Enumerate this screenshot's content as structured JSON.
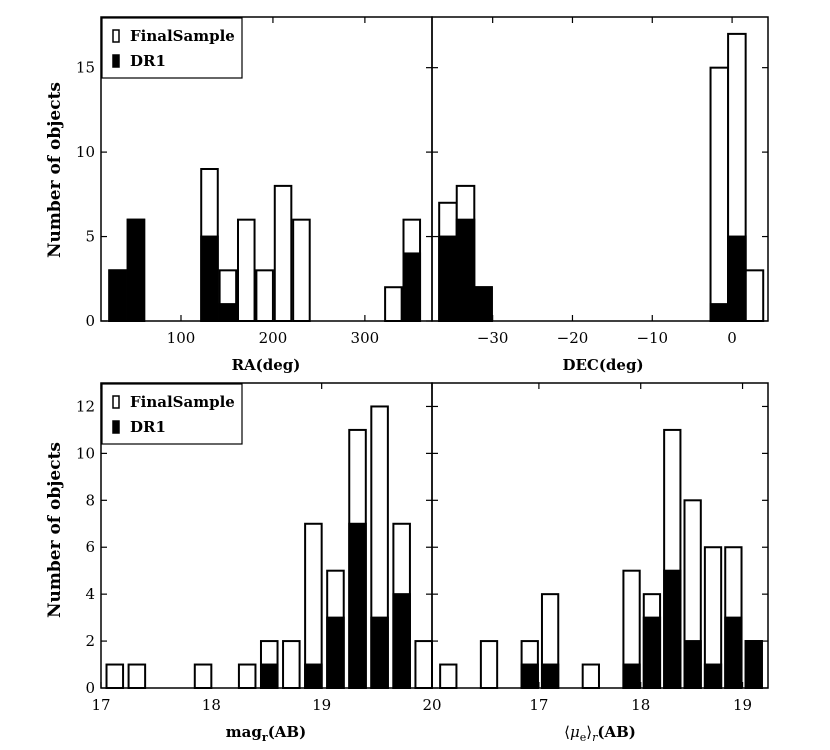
{
  "figure": {
    "ylabel_top": "Number of objects",
    "ylabel_bottom": "Number of objects"
  },
  "chart_data": [
    {
      "type": "bar",
      "panel": "top-left",
      "xlabel": "RA(deg)",
      "ylabel": "Number of objects",
      "xlim": [
        13,
        373
      ],
      "ylim": [
        0,
        18
      ],
      "xticks": [
        100,
        200,
        300
      ],
      "xtick_labels": [
        "100",
        "200",
        "300"
      ],
      "yticks": [
        0,
        5,
        10,
        15
      ],
      "ytick_labels": [
        "0",
        "5",
        "10",
        "15"
      ],
      "legend": {
        "position": "top-left",
        "entries": [
          "FinalSample",
          "DR1"
        ]
      },
      "series": [
        {
          "name": "FinalSample",
          "style": "open",
          "bins": [
            [
              22,
              40,
              3
            ],
            [
              42,
              60,
              6
            ],
            [
              122,
              140,
              9
            ],
            [
              142,
              160,
              3
            ],
            [
              162,
              180,
              6
            ],
            [
              182,
              200,
              3
            ],
            [
              202,
              220,
              8
            ],
            [
              222,
              240,
              6
            ],
            [
              322,
              340,
              2
            ],
            [
              342,
              360,
              6
            ]
          ]
        },
        {
          "name": "DR1",
          "style": "filled",
          "bins": [
            [
              22,
              40,
              3
            ],
            [
              42,
              60,
              6
            ],
            [
              122,
              140,
              5
            ],
            [
              142,
              160,
              1
            ],
            [
              342,
              360,
              4
            ]
          ]
        }
      ]
    },
    {
      "type": "bar",
      "panel": "top-right",
      "xlabel": "DEC(deg)",
      "ylabel": "",
      "xlim": [
        -37.6,
        4.5
      ],
      "ylim": [
        0,
        18
      ],
      "xticks": [
        -30,
        -20,
        -10,
        0
      ],
      "xtick_labels": [
        "−30",
        "−20",
        "−10",
        "0"
      ],
      "yticks": [
        0,
        5,
        10,
        15
      ],
      "ytick_labels": [],
      "series": [
        {
          "name": "FinalSample",
          "style": "open",
          "bins": [
            [
              -36.7,
              -34.5,
              7
            ],
            [
              -34.5,
              -32.3,
              8
            ],
            [
              -32.3,
              -30.1,
              2
            ],
            [
              -2.7,
              -0.5,
              15
            ],
            [
              -0.5,
              1.7,
              17
            ],
            [
              1.7,
              3.9,
              3
            ]
          ]
        },
        {
          "name": "DR1",
          "style": "filled",
          "bins": [
            [
              -36.7,
              -34.5,
              5
            ],
            [
              -34.5,
              -32.3,
              6
            ],
            [
              -32.3,
              -30.1,
              2
            ],
            [
              -2.7,
              -0.5,
              1
            ],
            [
              -0.5,
              1.7,
              5
            ]
          ]
        }
      ]
    },
    {
      "type": "bar",
      "panel": "bottom-left",
      "xlabel": "magr(AB)",
      "xlabel_main": "mag",
      "xlabel_sub": "r",
      "xlabel_tail": "(AB)",
      "ylabel": "Number of objects",
      "xlim": [
        17,
        20
      ],
      "ylim": [
        0,
        13
      ],
      "xticks": [
        17,
        18,
        19,
        20
      ],
      "xtick_labels": [
        "17",
        "18",
        "19",
        "20"
      ],
      "yticks": [
        0,
        2,
        4,
        6,
        8,
        10,
        12
      ],
      "ytick_labels": [
        "0",
        "2",
        "4",
        "6",
        "8",
        "10",
        "12"
      ],
      "legend": {
        "position": "top-left",
        "entries": [
          "FinalSample",
          "DR1"
        ]
      },
      "series": [
        {
          "name": "FinalSample",
          "style": "open",
          "bins": [
            [
              17.05,
              17.2,
              1
            ],
            [
              17.25,
              17.4,
              1
            ],
            [
              17.85,
              18.0,
              1
            ],
            [
              18.25,
              18.4,
              1
            ],
            [
              18.45,
              18.6,
              2
            ],
            [
              18.65,
              18.8,
              2
            ],
            [
              18.85,
              19.0,
              7
            ],
            [
              19.05,
              19.2,
              5
            ],
            [
              19.25,
              19.4,
              11
            ],
            [
              19.45,
              19.6,
              12
            ],
            [
              19.65,
              19.8,
              7
            ],
            [
              19.85,
              20.0,
              2
            ]
          ]
        },
        {
          "name": "DR1",
          "style": "filled",
          "bins": [
            [
              18.45,
              18.6,
              1
            ],
            [
              18.85,
              19.0,
              1
            ],
            [
              19.05,
              19.2,
              3
            ],
            [
              19.25,
              19.4,
              7
            ],
            [
              19.45,
              19.6,
              3
            ],
            [
              19.65,
              19.8,
              4
            ]
          ]
        }
      ]
    },
    {
      "type": "bar",
      "panel": "bottom-right",
      "xlabel": "⟨μe⟩r(AB)",
      "xlabel_mu": "μ",
      "xlabel_e": "e",
      "xlabel_r": "r",
      "xlabel_open": "⟨",
      "xlabel_close": "⟩",
      "xlabel_tail": "(AB)",
      "ylabel": "",
      "xlim": [
        15.95,
        19.25
      ],
      "ylim": [
        0,
        13
      ],
      "xticks": [
        17,
        18,
        19
      ],
      "xtick_labels": [
        "17",
        "18",
        "19"
      ],
      "yticks": [
        0,
        2,
        4,
        6,
        8,
        10,
        12
      ],
      "ytick_labels": [],
      "series": [
        {
          "name": "FinalSample",
          "style": "open",
          "bins": [
            [
              16.03,
              16.19,
              1
            ],
            [
              16.43,
              16.59,
              2
            ],
            [
              16.83,
              16.99,
              2
            ],
            [
              17.03,
              17.19,
              4
            ],
            [
              17.43,
              17.59,
              1
            ],
            [
              17.83,
              17.99,
              5
            ],
            [
              18.03,
              18.19,
              4
            ],
            [
              18.23,
              18.39,
              11
            ],
            [
              18.43,
              18.59,
              8
            ],
            [
              18.63,
              18.79,
              6
            ],
            [
              18.83,
              18.99,
              6
            ],
            [
              19.03,
              19.19,
              2
            ]
          ]
        },
        {
          "name": "DR1",
          "style": "filled",
          "bins": [
            [
              16.83,
              16.99,
              1
            ],
            [
              17.03,
              17.19,
              1
            ],
            [
              17.83,
              17.99,
              1
            ],
            [
              18.03,
              18.19,
              3
            ],
            [
              18.23,
              18.39,
              5
            ],
            [
              18.43,
              18.59,
              2
            ],
            [
              18.63,
              18.79,
              1
            ],
            [
              18.83,
              18.99,
              3
            ],
            [
              19.03,
              19.19,
              2
            ]
          ]
        }
      ]
    }
  ]
}
